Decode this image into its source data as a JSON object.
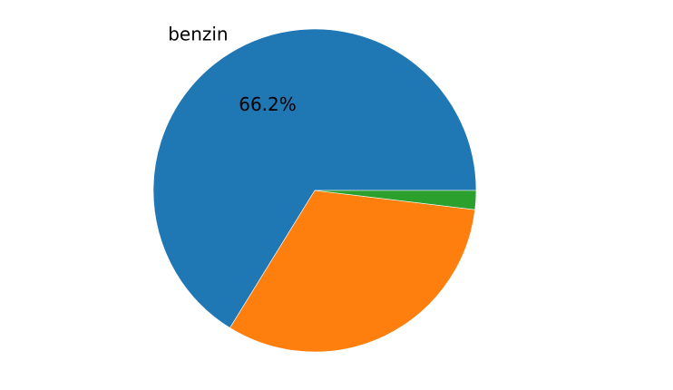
{
  "chart_data": {
    "type": "pie",
    "start_angle_deg": 0,
    "direction": "counterclockwise",
    "slices": [
      {
        "label": "benzin",
        "value": 66.2,
        "pct_label": "66.2%",
        "color": "#1f77b4"
      },
      {
        "label": "",
        "value": 31.9,
        "pct_label": "",
        "color": "#ff7f0e"
      },
      {
        "label": "",
        "value": 1.9,
        "pct_label": "",
        "color": "#2ca02c"
      }
    ],
    "edge_color": "#ffffff"
  }
}
